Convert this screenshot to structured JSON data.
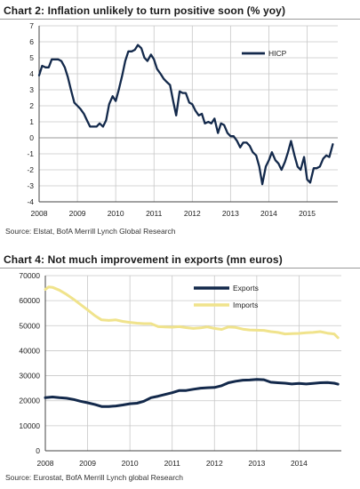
{
  "chart_data": [
    {
      "type": "line",
      "title": "Chart 2: Inflation unlikely to turn positive soon (% yoy)",
      "source": "Source: Elstat, BofA Merrill Lynch Global Research",
      "xlim": [
        2008.0,
        2015.8
      ],
      "ylim": [
        -4,
        7
      ],
      "x_ticks": [
        "2008",
        "2009",
        "2010",
        "2011",
        "2012",
        "2013",
        "2014",
        "2015"
      ],
      "y_ticks": [
        "7",
        "6",
        "5",
        "4",
        "3",
        "2",
        "1",
        "0",
        "-1",
        "-2",
        "-3",
        "-4"
      ],
      "grid": true,
      "legend_position": "top-right",
      "colors": {
        "HICP": "#13294b",
        "grid": "#c8c8c8"
      },
      "series": [
        {
          "name": "HICP",
          "points": [
            [
              2008.0,
              3.9
            ],
            [
              2008.08,
              4.5
            ],
            [
              2008.17,
              4.4
            ],
            [
              2008.25,
              4.4
            ],
            [
              2008.33,
              4.9
            ],
            [
              2008.42,
              4.9
            ],
            [
              2008.5,
              4.9
            ],
            [
              2008.58,
              4.8
            ],
            [
              2008.67,
              4.4
            ],
            [
              2008.75,
              3.8
            ],
            [
              2008.83,
              3.0
            ],
            [
              2008.92,
              2.2
            ],
            [
              2009.0,
              2.0
            ],
            [
              2009.08,
              1.8
            ],
            [
              2009.17,
              1.5
            ],
            [
              2009.25,
              1.1
            ],
            [
              2009.33,
              0.7
            ],
            [
              2009.42,
              0.7
            ],
            [
              2009.5,
              0.7
            ],
            [
              2009.58,
              0.9
            ],
            [
              2009.67,
              0.7
            ],
            [
              2009.75,
              1.1
            ],
            [
              2009.83,
              2.1
            ],
            [
              2009.92,
              2.6
            ],
            [
              2010.0,
              2.3
            ],
            [
              2010.08,
              3.0
            ],
            [
              2010.17,
              3.9
            ],
            [
              2010.25,
              4.8
            ],
            [
              2010.33,
              5.4
            ],
            [
              2010.42,
              5.4
            ],
            [
              2010.5,
              5.5
            ],
            [
              2010.58,
              5.8
            ],
            [
              2010.67,
              5.6
            ],
            [
              2010.75,
              5.0
            ],
            [
              2010.83,
              4.8
            ],
            [
              2010.92,
              5.2
            ],
            [
              2011.0,
              4.9
            ],
            [
              2011.08,
              4.3
            ],
            [
              2011.17,
              4.0
            ],
            [
              2011.25,
              3.7
            ],
            [
              2011.33,
              3.5
            ],
            [
              2011.42,
              3.3
            ],
            [
              2011.5,
              2.3
            ],
            [
              2011.58,
              1.4
            ],
            [
              2011.67,
              2.9
            ],
            [
              2011.75,
              2.8
            ],
            [
              2011.83,
              2.8
            ],
            [
              2011.92,
              2.2
            ],
            [
              2012.0,
              2.1
            ],
            [
              2012.08,
              1.7
            ],
            [
              2012.17,
              1.4
            ],
            [
              2012.25,
              1.5
            ],
            [
              2012.33,
              0.9
            ],
            [
              2012.42,
              1.0
            ],
            [
              2012.5,
              0.9
            ],
            [
              2012.58,
              1.2
            ],
            [
              2012.67,
              0.3
            ],
            [
              2012.75,
              0.9
            ],
            [
              2012.83,
              0.8
            ],
            [
              2012.92,
              0.3
            ],
            [
              2013.0,
              0.1
            ],
            [
              2013.08,
              0.1
            ],
            [
              2013.17,
              -0.2
            ],
            [
              2013.25,
              -0.6
            ],
            [
              2013.33,
              -0.3
            ],
            [
              2013.42,
              -0.3
            ],
            [
              2013.5,
              -0.5
            ],
            [
              2013.58,
              -0.9
            ],
            [
              2013.67,
              -1.1
            ],
            [
              2013.75,
              -1.8
            ],
            [
              2013.83,
              -2.9
            ],
            [
              2013.92,
              -1.8
            ],
            [
              2014.0,
              -1.4
            ],
            [
              2014.08,
              -0.9
            ],
            [
              2014.17,
              -1.4
            ],
            [
              2014.25,
              -1.6
            ],
            [
              2014.33,
              -2.0
            ],
            [
              2014.42,
              -1.5
            ],
            [
              2014.5,
              -0.9
            ],
            [
              2014.58,
              -0.2
            ],
            [
              2014.67,
              -1.1
            ],
            [
              2014.75,
              -1.8
            ],
            [
              2014.83,
              -2.0
            ],
            [
              2014.92,
              -1.2
            ],
            [
              2015.0,
              -2.6
            ],
            [
              2015.08,
              -2.8
            ],
            [
              2015.17,
              -1.9
            ],
            [
              2015.25,
              -1.9
            ],
            [
              2015.33,
              -1.8
            ],
            [
              2015.42,
              -1.3
            ],
            [
              2015.5,
              -1.1
            ],
            [
              2015.58,
              -1.2
            ],
            [
              2015.67,
              -0.4
            ]
          ]
        }
      ]
    },
    {
      "type": "line",
      "title": "Chart 4: Not much improvement in exports (mn euros)",
      "source": "Source: Eurostat, BofA Merrill Lynch global Research",
      "xlim": [
        2008.0,
        2015.0
      ],
      "ylim": [
        0,
        70000
      ],
      "x_ticks": [
        "2008",
        "2009",
        "2010",
        "2011",
        "2012",
        "2013",
        "2014"
      ],
      "y_ticks": [
        "70000",
        "60000",
        "50000",
        "40000",
        "30000",
        "20000",
        "10000",
        "0"
      ],
      "grid": true,
      "legend_position": "top-right",
      "colors": {
        "Exports": "#13294b",
        "Imports": "#f0e38c",
        "grid": "#c8c8c8"
      },
      "series": [
        {
          "name": "Exports",
          "points": [
            [
              2008.0,
              21200
            ],
            [
              2008.17,
              21500
            ],
            [
              2008.33,
              21200
            ],
            [
              2008.5,
              21000
            ],
            [
              2008.67,
              20500
            ],
            [
              2008.83,
              19800
            ],
            [
              2009.0,
              19200
            ],
            [
              2009.17,
              18500
            ],
            [
              2009.33,
              17700
            ],
            [
              2009.5,
              17700
            ],
            [
              2009.67,
              17900
            ],
            [
              2009.83,
              18300
            ],
            [
              2010.0,
              18800
            ],
            [
              2010.17,
              19000
            ],
            [
              2010.33,
              19800
            ],
            [
              2010.5,
              21200
            ],
            [
              2010.67,
              21800
            ],
            [
              2010.83,
              22500
            ],
            [
              2011.0,
              23200
            ],
            [
              2011.17,
              24100
            ],
            [
              2011.33,
              24100
            ],
            [
              2011.5,
              24600
            ],
            [
              2011.67,
              25000
            ],
            [
              2011.83,
              25200
            ],
            [
              2012.0,
              25300
            ],
            [
              2012.17,
              26000
            ],
            [
              2012.33,
              27200
            ],
            [
              2012.5,
              27800
            ],
            [
              2012.67,
              28200
            ],
            [
              2012.83,
              28300
            ],
            [
              2013.0,
              28500
            ],
            [
              2013.17,
              28400
            ],
            [
              2013.33,
              27400
            ],
            [
              2013.5,
              27200
            ],
            [
              2013.67,
              27000
            ],
            [
              2013.83,
              26700
            ],
            [
              2014.0,
              26900
            ],
            [
              2014.17,
              26700
            ],
            [
              2014.33,
              26900
            ],
            [
              2014.5,
              27200
            ],
            [
              2014.67,
              27300
            ],
            [
              2014.83,
              27000
            ],
            [
              2014.92,
              26600
            ]
          ]
        },
        {
          "name": "Imports",
          "points": [
            [
              2008.0,
              64500
            ],
            [
              2008.08,
              65500
            ],
            [
              2008.17,
              65300
            ],
            [
              2008.33,
              64200
            ],
            [
              2008.5,
              62500
            ],
            [
              2008.67,
              60500
            ],
            [
              2008.83,
              58500
            ],
            [
              2009.0,
              56300
            ],
            [
              2009.17,
              54000
            ],
            [
              2009.33,
              52300
            ],
            [
              2009.5,
              52100
            ],
            [
              2009.67,
              52300
            ],
            [
              2009.83,
              51700
            ],
            [
              2010.0,
              51300
            ],
            [
              2010.17,
              51000
            ],
            [
              2010.33,
              50800
            ],
            [
              2010.5,
              50800
            ],
            [
              2010.67,
              49600
            ],
            [
              2010.83,
              49500
            ],
            [
              2011.0,
              49400
            ],
            [
              2011.17,
              49600
            ],
            [
              2011.33,
              49200
            ],
            [
              2011.5,
              48900
            ],
            [
              2011.67,
              49100
            ],
            [
              2011.83,
              49500
            ],
            [
              2012.0,
              48900
            ],
            [
              2012.17,
              48500
            ],
            [
              2012.33,
              49500
            ],
            [
              2012.5,
              49300
            ],
            [
              2012.67,
              48600
            ],
            [
              2012.83,
              48300
            ],
            [
              2013.0,
              48200
            ],
            [
              2013.17,
              48100
            ],
            [
              2013.33,
              47600
            ],
            [
              2013.5,
              47300
            ],
            [
              2013.67,
              46700
            ],
            [
              2013.83,
              46800
            ],
            [
              2014.0,
              46900
            ],
            [
              2014.17,
              47200
            ],
            [
              2014.33,
              47300
            ],
            [
              2014.5,
              47600
            ],
            [
              2014.67,
              47000
            ],
            [
              2014.83,
              46700
            ],
            [
              2014.92,
              45200
            ]
          ]
        }
      ]
    }
  ]
}
